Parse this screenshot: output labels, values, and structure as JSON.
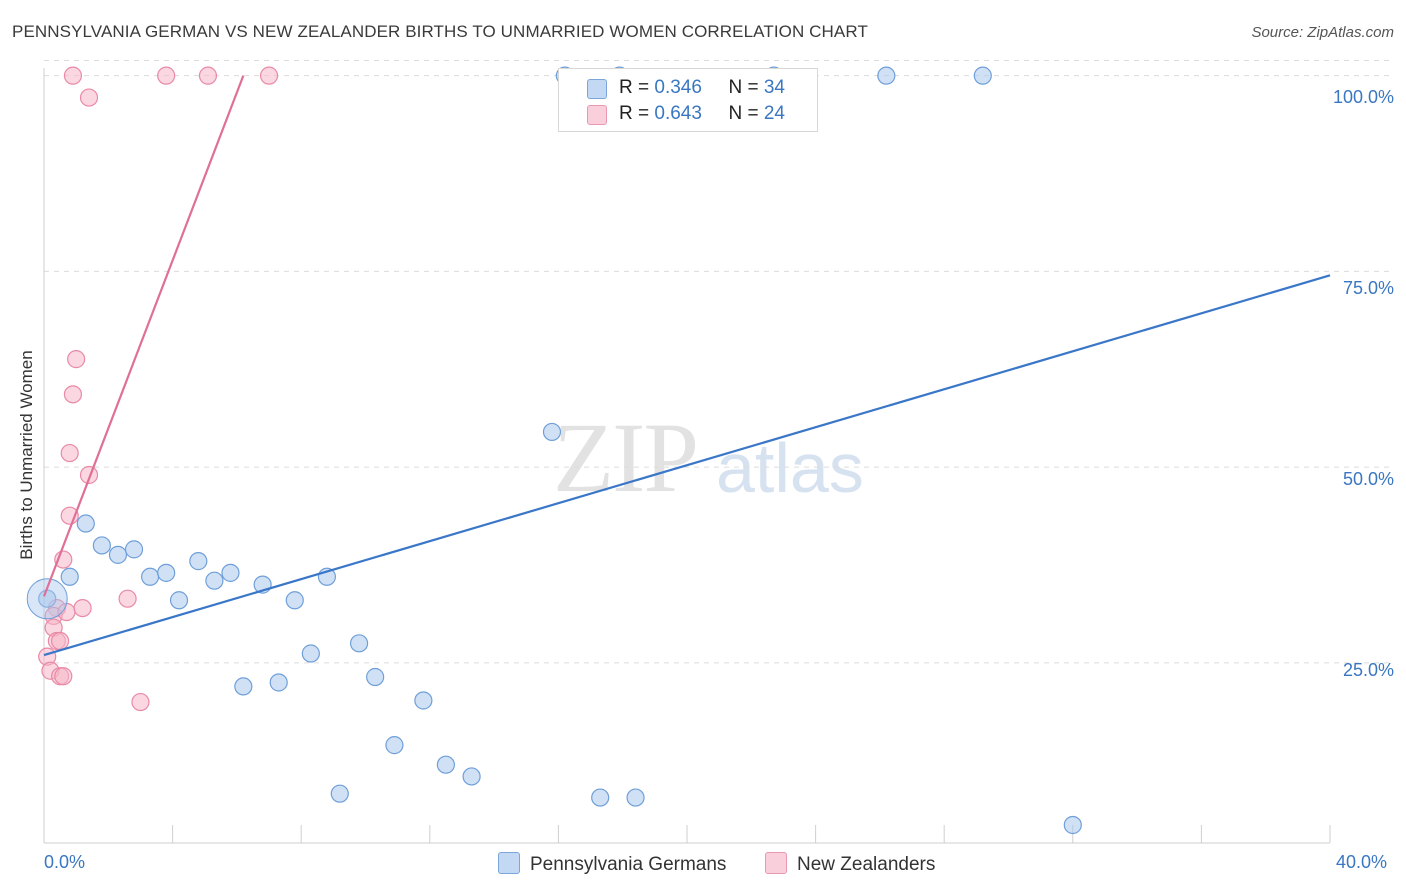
{
  "title": "PENNSYLVANIA GERMAN VS NEW ZEALANDER BIRTHS TO UNMARRIED WOMEN CORRELATION CHART",
  "source": "Source: ZipAtlas.com",
  "watermark": {
    "zip": "ZIP",
    "atlas": "atlas"
  },
  "legend": {
    "rows": [
      {
        "r_label": "R = ",
        "r_value": "0.346",
        "n_label": "N = ",
        "n_value": "34",
        "color": "#a9c8ee"
      },
      {
        "r_label": "R = ",
        "r_value": "0.643",
        "n_label": "N = ",
        "n_value": "24",
        "color": "#f5b6c8"
      }
    ]
  },
  "bottom_legend": [
    "Pennsylvania Germans",
    "New Zealanders"
  ],
  "chart_data": {
    "type": "scatter",
    "title": "PENNSYLVANIA GERMAN VS NEW ZEALANDER BIRTHS TO UNMARRIED WOMEN CORRELATION CHART",
    "xlabel": "",
    "ylabel": "Births to Unmarried Women",
    "xlim": [
      0,
      40
    ],
    "ylim": [
      2,
      102
    ],
    "x_tick_labels": [
      "0.0%",
      "40.0%"
    ],
    "y_ticks": [
      25,
      50,
      75,
      100
    ],
    "y_tick_labels": [
      "25.0%",
      "50.0%",
      "75.0%",
      "100.0%"
    ],
    "grid": true,
    "colors": {
      "blue_fill": "#a9c8ee",
      "blue_stroke": "#6f9fd8",
      "blue_line": "#3a77c9",
      "pink_fill": "#f5b6c8",
      "pink_stroke": "#e98aa7",
      "pink_line": "#e06f98",
      "tick": "#3a77c2",
      "grid": "#dcdcdc"
    },
    "series": [
      {
        "name": "Pennsylvania Germans",
        "points": [
          [
            16.2,
            100
          ],
          [
            17.9,
            100
          ],
          [
            22.7,
            100
          ],
          [
            26.2,
            100
          ],
          [
            29.2,
            100
          ],
          [
            0.1,
            33.2
          ],
          [
            0.8,
            36.0
          ],
          [
            1.3,
            42.8
          ],
          [
            1.8,
            40.0
          ],
          [
            2.3,
            38.8
          ],
          [
            2.8,
            39.5
          ],
          [
            3.3,
            36.0
          ],
          [
            3.8,
            36.5
          ],
          [
            4.2,
            33.0
          ],
          [
            4.8,
            38.0
          ],
          [
            5.3,
            35.5
          ],
          [
            5.8,
            36.5
          ],
          [
            6.2,
            22.0
          ],
          [
            6.8,
            35.0
          ],
          [
            7.3,
            22.5
          ],
          [
            7.8,
            33.0
          ],
          [
            8.3,
            26.2
          ],
          [
            8.8,
            36.0
          ],
          [
            9.2,
            8.3
          ],
          [
            9.8,
            27.5
          ],
          [
            10.3,
            23.2
          ],
          [
            10.9,
            14.5
          ],
          [
            11.8,
            20.2
          ],
          [
            12.5,
            12.0
          ],
          [
            13.3,
            10.5
          ],
          [
            15.8,
            54.5
          ],
          [
            17.3,
            7.8
          ],
          [
            18.4,
            7.8
          ],
          [
            32.0,
            4.3
          ]
        ],
        "trend": [
          [
            0,
            26.0
          ],
          [
            40,
            74.5
          ]
        ]
      },
      {
        "name": "New Zealanders",
        "points": [
          [
            0.9,
            100
          ],
          [
            1.4,
            97.2
          ],
          [
            3.8,
            100
          ],
          [
            5.1,
            100
          ],
          [
            7.0,
            100
          ],
          [
            1.0,
            63.8
          ],
          [
            0.9,
            59.3
          ],
          [
            0.8,
            51.8
          ],
          [
            1.4,
            49.0
          ],
          [
            0.8,
            43.8
          ],
          [
            0.6,
            38.2
          ],
          [
            0.4,
            32.0
          ],
          [
            0.3,
            31.0
          ],
          [
            0.7,
            31.5
          ],
          [
            1.2,
            32.0
          ],
          [
            2.6,
            33.2
          ],
          [
            0.3,
            29.5
          ],
          [
            0.4,
            27.8
          ],
          [
            0.5,
            27.8
          ],
          [
            0.1,
            25.8
          ],
          [
            0.2,
            24.0
          ],
          [
            0.5,
            23.3
          ],
          [
            0.6,
            23.3
          ],
          [
            3.0,
            20.0
          ]
        ],
        "trend": [
          [
            0,
            33.5
          ],
          [
            6.2,
            100
          ]
        ]
      }
    ]
  }
}
